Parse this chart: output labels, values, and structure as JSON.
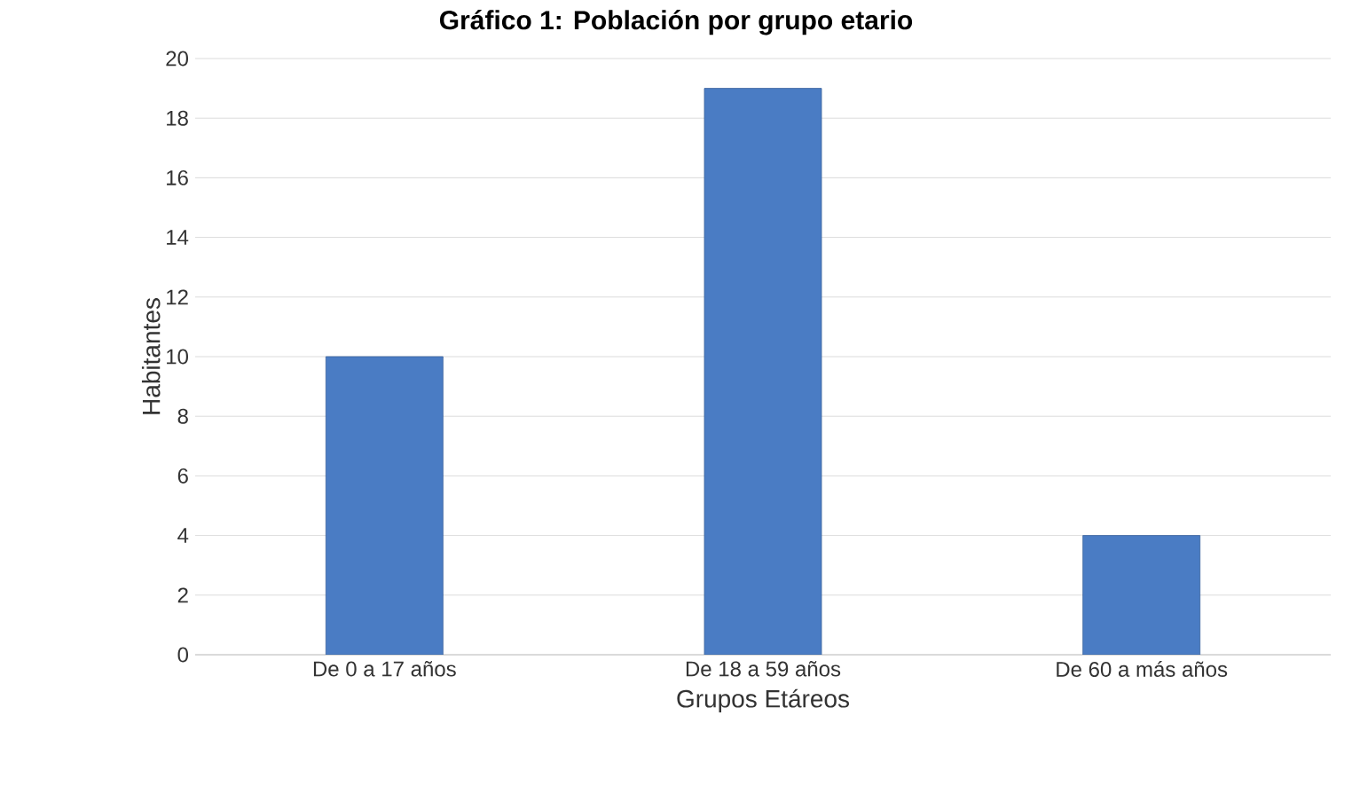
{
  "chart_data": {
    "type": "bar",
    "title": "Gráfico 1: Población por grupo etario",
    "xlabel": "Grupos Etáreos",
    "ylabel": "Habitantes",
    "categories": [
      "De 0 a 17 años",
      "De 18 a 59 años",
      "De 60 a más años"
    ],
    "values": [
      10,
      19,
      4
    ],
    "color": "#4a7cc4",
    "ylim": [
      0,
      20
    ],
    "yticks": [
      0,
      2,
      4,
      6,
      8,
      10,
      12,
      14,
      16,
      18,
      20
    ],
    "grid": "y"
  }
}
